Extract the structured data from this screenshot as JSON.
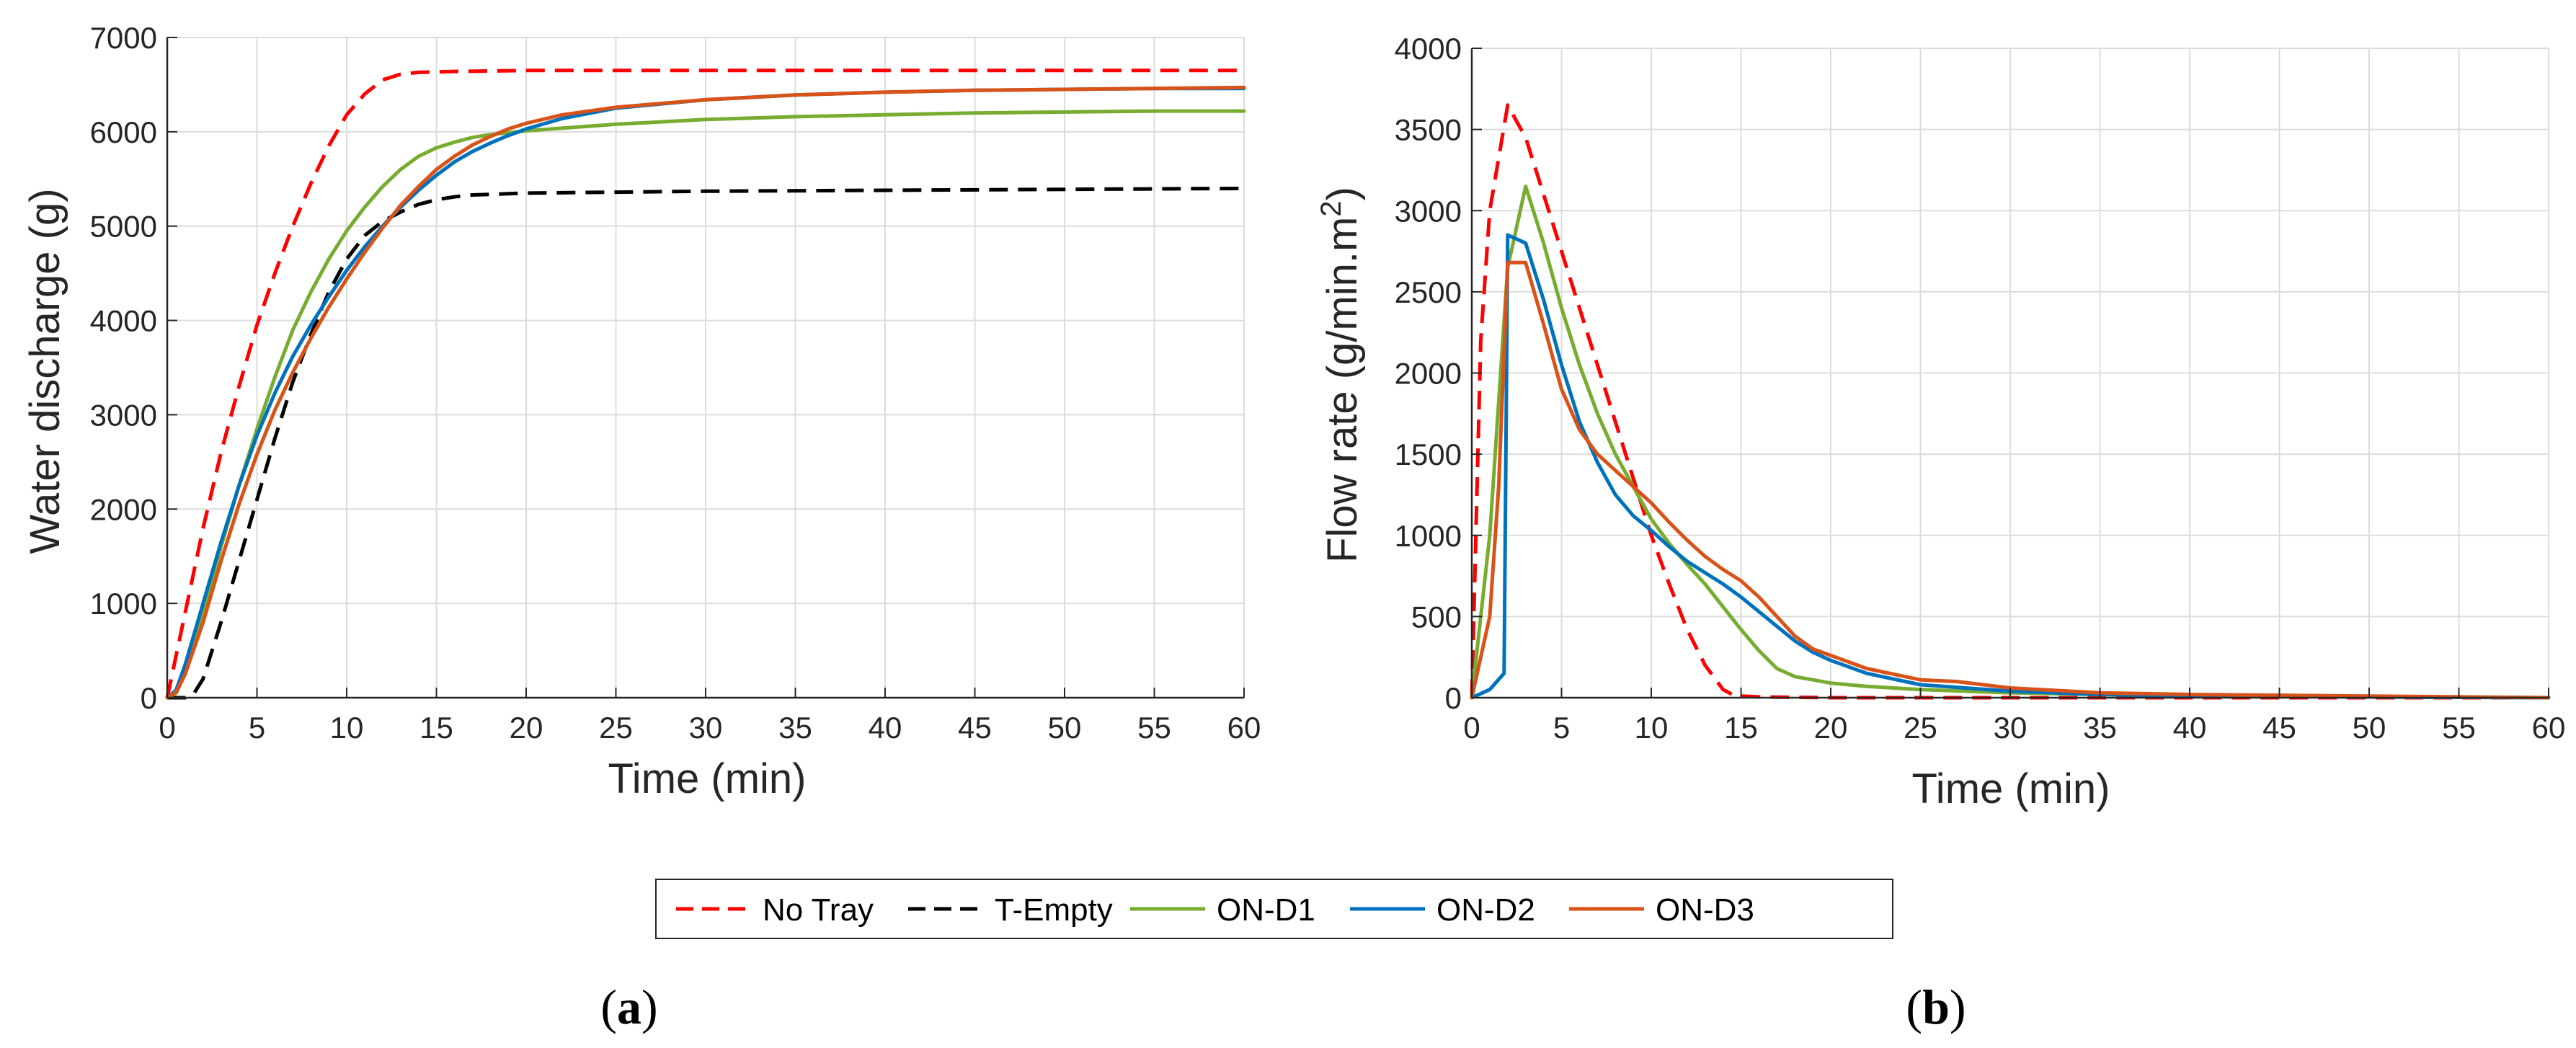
{
  "colors": {
    "no_tray": "#ff0000",
    "t_empty": "#000000",
    "on_d1": "#77ac30",
    "on_d2": "#0072bd",
    "on_d3": "#d95319",
    "grid": "#dcdcdc",
    "axis": "#262626"
  },
  "legend": {
    "entries": [
      {
        "label": "No Tray",
        "series": "no_tray",
        "dashed": true
      },
      {
        "label": "T-Empty",
        "series": "t_empty",
        "dashed": true
      },
      {
        "label": "ON-D1",
        "series": "on_d1",
        "dashed": false
      },
      {
        "label": "ON-D2",
        "series": "on_d2",
        "dashed": false
      },
      {
        "label": "ON-D3",
        "series": "on_d3",
        "dashed": false
      }
    ]
  },
  "chart_data": [
    {
      "id": "a",
      "type": "line",
      "caption_open": "(",
      "caption_letter": "a",
      "caption_close": ")",
      "xlabel": "Time (min)",
      "ylabel": "Water discharge (g)",
      "xlim": [
        0,
        60
      ],
      "ylim": [
        0,
        7000
      ],
      "xticks": [
        0,
        5,
        10,
        15,
        20,
        25,
        30,
        35,
        40,
        45,
        50,
        55,
        60
      ],
      "yticks": [
        0,
        1000,
        2000,
        3000,
        4000,
        5000,
        6000,
        7000
      ],
      "grid": true,
      "series": [
        {
          "key": "no_tray",
          "name": "No Tray",
          "dashed": true,
          "x": [
            0,
            1,
            2,
            3,
            4,
            5,
            6,
            7,
            8,
            9,
            10,
            11,
            12,
            13,
            14,
            16,
            20,
            30,
            40,
            50,
            60
          ],
          "y": [
            0,
            900,
            1800,
            2600,
            3300,
            3950,
            4500,
            5000,
            5450,
            5850,
            6180,
            6400,
            6550,
            6610,
            6630,
            6640,
            6650,
            6650,
            6650,
            6650,
            6650
          ]
        },
        {
          "key": "t_empty",
          "name": "T-Empty",
          "dashed": true,
          "x": [
            0,
            1,
            1.5,
            2,
            3,
            4,
            5,
            6,
            7,
            8,
            9,
            10,
            11,
            12,
            13,
            14,
            15,
            16,
            17,
            20,
            25,
            30,
            40,
            50,
            60
          ],
          "y": [
            0,
            0,
            50,
            200,
            800,
            1450,
            2100,
            2750,
            3350,
            3850,
            4300,
            4650,
            4900,
            5050,
            5150,
            5230,
            5280,
            5310,
            5330,
            5350,
            5360,
            5370,
            5380,
            5390,
            5400
          ]
        },
        {
          "key": "on_d1",
          "name": "ON-D1",
          "dashed": false,
          "x": [
            0,
            0.5,
            1,
            2,
            3,
            4,
            5,
            6,
            7,
            8,
            9,
            10,
            11,
            12,
            13,
            14,
            15,
            16,
            17,
            18,
            19,
            20,
            25,
            30,
            35,
            40,
            45,
            50,
            55,
            60
          ],
          "y": [
            0,
            50,
            250,
            900,
            1600,
            2250,
            2850,
            3400,
            3900,
            4300,
            4650,
            4950,
            5200,
            5420,
            5600,
            5740,
            5830,
            5890,
            5940,
            5970,
            5990,
            6010,
            6080,
            6130,
            6160,
            6180,
            6200,
            6210,
            6220,
            6220
          ]
        },
        {
          "key": "on_d2",
          "name": "ON-D2",
          "dashed": false,
          "x": [
            0,
            0.5,
            1,
            2,
            3,
            4,
            5,
            6,
            7,
            8,
            9,
            10,
            11,
            12,
            13,
            14,
            15,
            16,
            17,
            18,
            19,
            20,
            22,
            25,
            30,
            35,
            40,
            45,
            50,
            55,
            60
          ],
          "y": [
            0,
            80,
            350,
            1000,
            1650,
            2250,
            2780,
            3230,
            3620,
            3950,
            4250,
            4530,
            4780,
            5000,
            5200,
            5380,
            5540,
            5680,
            5790,
            5880,
            5960,
            6030,
            6140,
            6250,
            6340,
            6390,
            6420,
            6440,
            6450,
            6460,
            6460
          ]
        },
        {
          "key": "on_d3",
          "name": "ON-D3",
          "dashed": false,
          "x": [
            0,
            0.5,
            1,
            2,
            3,
            4,
            5,
            6,
            7,
            8,
            9,
            10,
            11,
            12,
            13,
            14,
            15,
            16,
            17,
            18,
            19,
            20,
            22,
            25,
            30,
            35,
            40,
            45,
            50,
            55,
            60
          ],
          "y": [
            0,
            60,
            250,
            800,
            1450,
            2050,
            2580,
            3050,
            3450,
            3810,
            4140,
            4440,
            4720,
            4980,
            5220,
            5420,
            5600,
            5740,
            5860,
            5950,
            6030,
            6090,
            6180,
            6260,
            6340,
            6390,
            6420,
            6440,
            6450,
            6460,
            6470
          ]
        }
      ]
    },
    {
      "id": "b",
      "type": "line",
      "caption_open": "(",
      "caption_letter": "b",
      "caption_close": ")",
      "xlabel": "Time (min)",
      "ylabel": "Flow rate (g/min.m",
      "ylabel_sup": "2",
      "ylabel_close": ")",
      "xlim": [
        0,
        60
      ],
      "ylim": [
        0,
        4000
      ],
      "xticks": [
        0,
        5,
        10,
        15,
        20,
        25,
        30,
        35,
        40,
        45,
        50,
        55,
        60
      ],
      "yticks": [
        0,
        500,
        1000,
        1500,
        2000,
        2500,
        3000,
        3500,
        4000
      ],
      "grid": true,
      "series": [
        {
          "key": "no_tray",
          "name": "No Tray",
          "dashed": true,
          "x": [
            0,
            0.5,
            1,
            2,
            3,
            4,
            5,
            6,
            7,
            8,
            9,
            10,
            11,
            12,
            13,
            14,
            14.5,
            15,
            16,
            20,
            30,
            40,
            50,
            60
          ],
          "y": [
            0,
            2200,
            3000,
            3650,
            3450,
            3100,
            2750,
            2400,
            2050,
            1700,
            1350,
            1000,
            700,
            420,
            200,
            50,
            20,
            10,
            5,
            0,
            0,
            0,
            0,
            0
          ]
        },
        {
          "key": "on_d1",
          "name": "ON-D1",
          "dashed": false,
          "x": [
            0,
            1,
            2,
            3,
            4,
            5,
            6,
            7,
            8,
            9,
            10,
            11,
            12,
            13,
            14,
            15,
            16,
            17,
            18,
            19,
            20,
            22,
            25,
            30,
            35,
            40,
            50,
            60
          ],
          "y": [
            0,
            1000,
            2650,
            3150,
            2800,
            2400,
            2050,
            1750,
            1500,
            1300,
            1100,
            950,
            820,
            700,
            560,
            420,
            290,
            180,
            130,
            110,
            90,
            70,
            50,
            30,
            20,
            10,
            5,
            0
          ]
        },
        {
          "key": "on_d2",
          "name": "ON-D2",
          "dashed": false,
          "x": [
            0,
            1,
            1.8,
            2,
            3,
            4,
            5,
            6,
            7,
            8,
            9,
            10,
            11,
            12,
            13,
            14,
            15,
            16,
            17,
            18,
            19,
            20,
            22,
            25,
            30,
            35,
            40,
            50,
            60
          ],
          "y": [
            0,
            50,
            150,
            2850,
            2800,
            2450,
            2050,
            1700,
            1450,
            1250,
            1120,
            1030,
            930,
            840,
            770,
            700,
            620,
            530,
            440,
            350,
            280,
            230,
            150,
            80,
            40,
            20,
            10,
            5,
            0
          ]
        },
        {
          "key": "on_d3",
          "name": "ON-D3",
          "dashed": false,
          "x": [
            0,
            1,
            1.5,
            2,
            3,
            4,
            5,
            6,
            7,
            8,
            9,
            10,
            11,
            12,
            13,
            14,
            15,
            16,
            17,
            18,
            19,
            20,
            22,
            25,
            27,
            30,
            35,
            40,
            50,
            60
          ],
          "y": [
            0,
            500,
            1300,
            2680,
            2680,
            2300,
            1900,
            1650,
            1500,
            1400,
            1300,
            1200,
            1080,
            970,
            870,
            790,
            720,
            620,
            500,
            380,
            300,
            260,
            180,
            110,
            100,
            60,
            30,
            20,
            10,
            0
          ]
        }
      ]
    }
  ]
}
